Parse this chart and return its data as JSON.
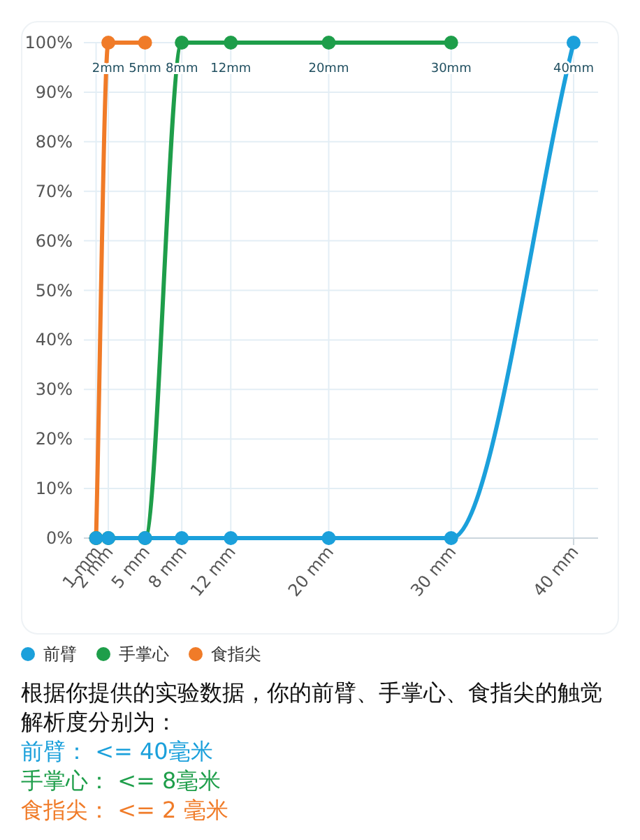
{
  "chart_data": {
    "type": "line",
    "x": [
      1,
      2,
      5,
      8,
      12,
      20,
      30,
      40
    ],
    "series": [
      {
        "name": "前臂",
        "color": "#1ba0db",
        "values": [
          0,
          0,
          0,
          0,
          0,
          0,
          0,
          100
        ]
      },
      {
        "name": "手掌心",
        "color": "#1e9e4a",
        "values": [
          0,
          0,
          0,
          100,
          100,
          100,
          100,
          null
        ]
      },
      {
        "name": "食指尖",
        "color": "#f07b28",
        "values": [
          0,
          100,
          100,
          null,
          null,
          null,
          null,
          null
        ]
      }
    ],
    "xlim": [
      0,
      42
    ],
    "xticks": [
      {
        "value": 1,
        "label": "1 mm"
      },
      {
        "value": 2,
        "label": "2 mm"
      },
      {
        "value": 5,
        "label": "5 mm"
      },
      {
        "value": 8,
        "label": "8 mm"
      },
      {
        "value": 12,
        "label": "12 mm"
      },
      {
        "value": 20,
        "label": "20 mm"
      },
      {
        "value": 30,
        "label": "30 mm"
      },
      {
        "value": 40,
        "label": "40 mm"
      }
    ],
    "ylim": [
      0,
      100
    ],
    "yticks": [
      {
        "value": 0,
        "label": "0%"
      },
      {
        "value": 10,
        "label": "10%"
      },
      {
        "value": 20,
        "label": "20%"
      },
      {
        "value": 30,
        "label": "30%"
      },
      {
        "value": 40,
        "label": "40%"
      },
      {
        "value": 50,
        "label": "50%"
      },
      {
        "value": 60,
        "label": "60%"
      },
      {
        "value": 70,
        "label": "70%"
      },
      {
        "value": 80,
        "label": "80%"
      },
      {
        "value": 90,
        "label": "90%"
      },
      {
        "value": 100,
        "label": "100%"
      }
    ],
    "grid": true,
    "legend": "bottom",
    "marker": "circle",
    "line_style": "solid",
    "annotations": [
      {
        "text": "2mm",
        "x": 2,
        "y": 100
      },
      {
        "text": "5mm",
        "x": 5,
        "y": 100
      },
      {
        "text": "8mm",
        "x": 8,
        "y": 100
      },
      {
        "text": "12mm",
        "x": 12,
        "y": 100
      },
      {
        "text": "20mm",
        "x": 20,
        "y": 100
      },
      {
        "text": "30mm",
        "x": 30,
        "y": 100
      },
      {
        "text": "40mm",
        "x": 40,
        "y": 100
      },
      "根据你提供的实验数据，你的前臂、手掌心、食指尖的触觉解析度分别为：",
      "前臂：  <= 40毫米",
      "手掌心：  <= 8毫米",
      "食指尖：  <= 2 毫米"
    ]
  }
}
